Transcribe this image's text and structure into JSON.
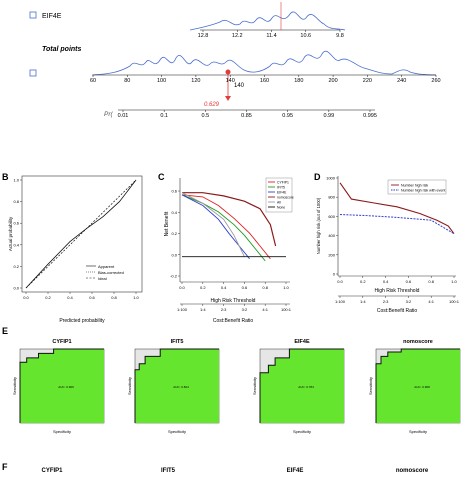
{
  "colors": {
    "density": "#4a6fd1",
    "marker": "#e23b3b",
    "roc_fill": "#66e52e",
    "roc_curve": "#111111",
    "roc_bg": "#e6e6e6"
  },
  "nomogram": {
    "row1_label": "EIF4E",
    "row1_ticks": [
      "12.8",
      "12.2",
      "11.4",
      "10.6",
      "9.8"
    ],
    "total_points_label": "Total points",
    "points_ticks": [
      "60",
      "80",
      "100",
      "120",
      "140",
      "160",
      "180",
      "200",
      "220",
      "240",
      "260"
    ],
    "marker_label": "140",
    "pr_label": "Pr(",
    "pr_ticks": [
      "0.01",
      "0.1",
      "0.5",
      "0.85",
      "0.95",
      "0.99",
      "0.995"
    ],
    "pr_marker_value": "0.629"
  },
  "panel_b": {
    "letter": "B",
    "ylabel": "Actual probability",
    "xlabel": "Predicted probability",
    "ticks": [
      "0.0",
      "0.2",
      "0.4",
      "0.6",
      "0.8",
      "1.0"
    ],
    "legend": [
      "Apparent",
      "Bias-corrected",
      "Ideal"
    ]
  },
  "panel_c": {
    "letter": "C",
    "ylabel": "Net Benefit",
    "xlabel": "High Risk Threshold",
    "xlabel2": "Cost:Benefit Ratio",
    "yticks": [
      "0.6",
      "0.4",
      "0.2",
      "0.0",
      "-0.2"
    ],
    "xticks": [
      "0.0",
      "0.2",
      "0.4",
      "0.6",
      "0.8",
      "1.0"
    ],
    "ratio_ticks": [
      "1:100",
      "1:4",
      "2:3",
      "3:2",
      "4:1",
      "100:1"
    ],
    "legend": [
      {
        "name": "CYFIP1",
        "color": "#e02020"
      },
      {
        "name": "IFIT5",
        "color": "#1f9b1f"
      },
      {
        "name": "EIF4E",
        "color": "#2f3fd0"
      },
      {
        "name": "nomoscore",
        "color": "#8b1a1a"
      },
      {
        "name": "All",
        "color": "#9a9a9a"
      },
      {
        "name": "None",
        "color": "#111111"
      }
    ]
  },
  "panel_d": {
    "letter": "D",
    "ylabel": "Number high risk (out of 1000)",
    "xlabel": "High Risk Threshold",
    "xlabel2": "Cost:Benefit Ratio",
    "yticks": [
      "1000",
      "800",
      "600",
      "400",
      "200",
      "0"
    ],
    "xticks": [
      "0.0",
      "0.2",
      "0.4",
      "0.6",
      "0.8",
      "1.0"
    ],
    "ratio_ticks": [
      "1:100",
      "1:4",
      "2:3",
      "3:2",
      "4:1",
      "100:1"
    ],
    "legend": [
      "Number high risk",
      "Number high risk with event"
    ]
  },
  "panel_e": {
    "letter": "E",
    "ylabel": "Sensitivity",
    "xlabel": "Specificity",
    "charts": [
      {
        "title": "CYFIP1",
        "auc": "AUC: 0.906"
      },
      {
        "title": "IFIT5",
        "auc": "AUC: 0.824"
      },
      {
        "title": "EIF4E",
        "auc": "AUC: 0.784"
      },
      {
        "title": "nomoscore",
        "auc": "AUC: 0.968"
      }
    ]
  },
  "panel_f": {
    "letter": "F",
    "titles": [
      "CYFIP1",
      "IFIT5",
      "EIF4E",
      "nomoscore"
    ]
  },
  "chart_data": [
    {
      "type": "line",
      "panel": "B",
      "xlabel": "Predicted probability",
      "ylabel": "Actual probability",
      "xlim": [
        0,
        1
      ],
      "ylim": [
        0,
        1
      ],
      "series": [
        {
          "name": "Apparent",
          "x": [
            0.0,
            0.2,
            0.4,
            0.55,
            0.7,
            0.85,
            1.0
          ],
          "y": [
            0.0,
            0.22,
            0.43,
            0.55,
            0.66,
            0.8,
            1.0
          ]
        },
        {
          "name": "Ideal",
          "x": [
            0,
            1
          ],
          "y": [
            0,
            1
          ]
        }
      ]
    },
    {
      "type": "line",
      "panel": "C",
      "xlabel": "High Risk Threshold",
      "ylabel": "Net Benefit",
      "xlim": [
        0,
        1
      ],
      "ylim": [
        -0.2,
        0.7
      ],
      "series": [
        {
          "name": "CYFIP1",
          "x": [
            0.0,
            0.2,
            0.35,
            0.5,
            0.65,
            0.75,
            0.85
          ],
          "y": [
            0.58,
            0.56,
            0.48,
            0.36,
            0.22,
            0.1,
            -0.02
          ]
        },
        {
          "name": "IFIT5",
          "x": [
            0.0,
            0.2,
            0.35,
            0.5,
            0.6,
            0.7,
            0.8
          ],
          "y": [
            0.58,
            0.5,
            0.42,
            0.3,
            0.2,
            0.08,
            -0.04
          ]
        },
        {
          "name": "EIF4E",
          "x": [
            0.0,
            0.2,
            0.35,
            0.45,
            0.55,
            0.65
          ],
          "y": [
            0.58,
            0.48,
            0.35,
            0.22,
            0.1,
            -0.02
          ]
        },
        {
          "name": "nomoscore",
          "x": [
            0.0,
            0.2,
            0.4,
            0.6,
            0.75,
            0.85,
            0.9
          ],
          "y": [
            0.6,
            0.6,
            0.57,
            0.52,
            0.45,
            0.3,
            0.1
          ]
        },
        {
          "name": "All",
          "x": [
            0.0,
            0.2,
            0.4,
            0.5,
            0.6
          ],
          "y": [
            0.6,
            0.5,
            0.35,
            0.2,
            0.0
          ]
        },
        {
          "name": "None",
          "x": [
            0,
            1
          ],
          "y": [
            0,
            0
          ]
        }
      ]
    },
    {
      "type": "line",
      "panel": "D",
      "xlabel": "High Risk Threshold",
      "ylabel": "Number high risk (out of 1000)",
      "xlim": [
        0,
        1
      ],
      "ylim": [
        0,
        1000
      ],
      "series": [
        {
          "name": "Number high risk",
          "x": [
            0.0,
            0.1,
            0.3,
            0.5,
            0.7,
            0.85,
            0.95,
            1.0
          ],
          "y": [
            950,
            780,
            740,
            700,
            630,
            560,
            500,
            420
          ]
        },
        {
          "name": "Number high risk with event",
          "x": [
            0.0,
            0.2,
            0.5,
            0.8,
            1.0
          ],
          "y": [
            620,
            610,
            590,
            560,
            420
          ]
        }
      ]
    }
  ]
}
